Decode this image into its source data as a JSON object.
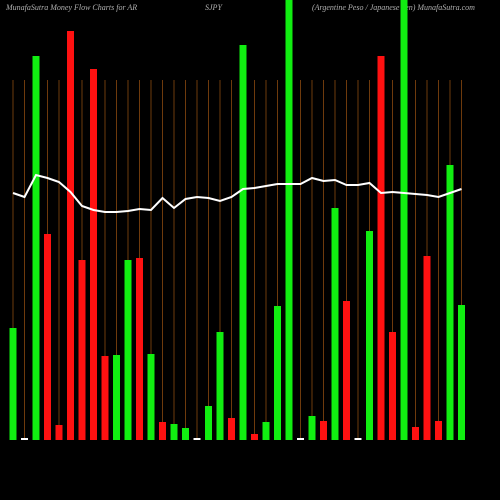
{
  "chart_data": {
    "type": "bar",
    "title_left": "MunafaSutra  Money Flow  Charts for AR",
    "title_mid": "SJPY",
    "title_right": "(Argentine   Peso   / Japanese   Yen) MunafaSutra.com",
    "categories": [
      null,
      null,
      null,
      null,
      null,
      null,
      null,
      null,
      null,
      null,
      null,
      null,
      null,
      null,
      null,
      null,
      null,
      null,
      null,
      null,
      null,
      null,
      null,
      null,
      null,
      null,
      null,
      null,
      null,
      null,
      null,
      null,
      null,
      null,
      null,
      null,
      null,
      null,
      null,
      null
    ],
    "values": [
      112,
      2,
      384,
      206,
      15,
      409,
      180,
      371,
      84,
      85,
      180,
      182,
      86,
      18,
      16,
      12,
      2,
      34,
      108,
      22,
      395,
      6,
      18,
      134,
      440,
      2,
      24,
      19,
      232,
      139,
      2,
      209,
      384,
      108,
      440,
      13,
      184,
      19,
      275,
      135
    ],
    "colors": [
      "#11ee11",
      "#ffffff",
      "#11ee11",
      "#ff1111",
      "#ff1111",
      "#ff1111",
      "#ff1111",
      "#ff1111",
      "#ff1111",
      "#11ee11",
      "#11ee11",
      "#ff1111",
      "#11ee11",
      "#ff1111",
      "#11ee11",
      "#11ee11",
      "#ffffff",
      "#11ee11",
      "#11ee11",
      "#ff1111",
      "#11ee11",
      "#ff1111",
      "#11ee11",
      "#11ee11",
      "#11ee11",
      "#ffffff",
      "#11ee11",
      "#ff1111",
      "#11ee11",
      "#ff1111",
      "#ffffff",
      "#11ee11",
      "#ff1111",
      "#ff1111",
      "#11ee11",
      "#ff1111",
      "#ff1111",
      "#ff1111",
      "#11ee11",
      "#11ee11"
    ],
    "line_values": [
      247,
      243,
      265,
      262,
      258,
      248,
      234,
      230,
      228,
      228,
      229,
      231,
      230,
      242,
      232,
      241,
      243,
      242,
      239,
      243,
      251,
      252,
      254,
      256,
      256,
      256,
      262,
      259,
      260,
      255,
      255,
      257,
      247,
      248,
      247,
      246,
      245,
      243,
      247,
      251
    ],
    "line_color": "#ffffff",
    "ylim": [
      0,
      440
    ]
  }
}
